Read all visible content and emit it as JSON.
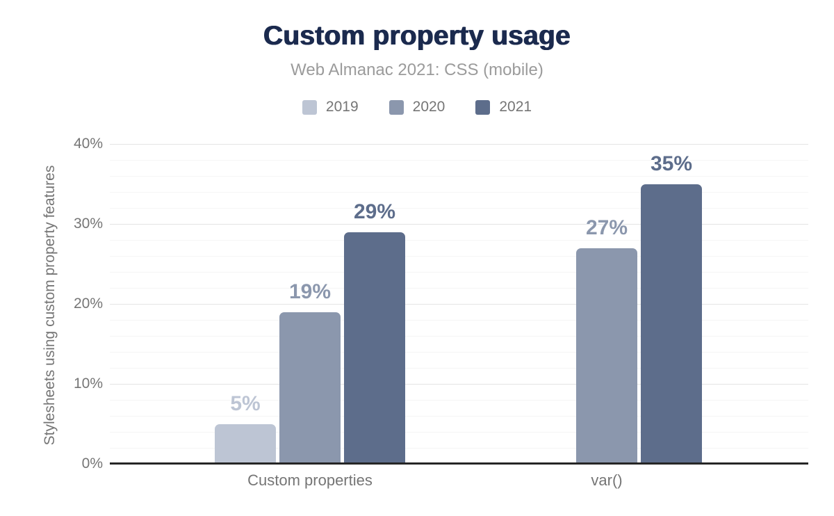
{
  "chart_data": {
    "type": "bar",
    "title": "Custom property usage",
    "subtitle": "Web Almanac 2021: CSS (mobile)",
    "ylabel": "Stylesheets using custom property features",
    "xlabel": "",
    "categories": [
      "Custom properties",
      "var()"
    ],
    "series": [
      {
        "name": "2019",
        "color": "#bdc5d4",
        "values": [
          5,
          null
        ]
      },
      {
        "name": "2020",
        "color": "#8b97ad",
        "values": [
          19,
          27
        ]
      },
      {
        "name": "2021",
        "color": "#5d6d8b",
        "values": [
          29,
          35
        ]
      }
    ],
    "value_suffix": "%",
    "ylim": [
      0,
      40
    ],
    "yticks": [
      "0%",
      "10%",
      "20%",
      "30%",
      "40%"
    ],
    "ytick_values": [
      0,
      10,
      20,
      30,
      40
    ],
    "minor_grid_step": 2,
    "grid": true,
    "legend_position": "top"
  },
  "colors": {
    "title": "#1b2a4e",
    "subtitle": "#9b9b9b",
    "axis_text": "#757575",
    "major_grid": "#e4e4e4",
    "minor_grid": "#f5f5f5",
    "axis_line": "#262626",
    "background": "#ffffff"
  }
}
